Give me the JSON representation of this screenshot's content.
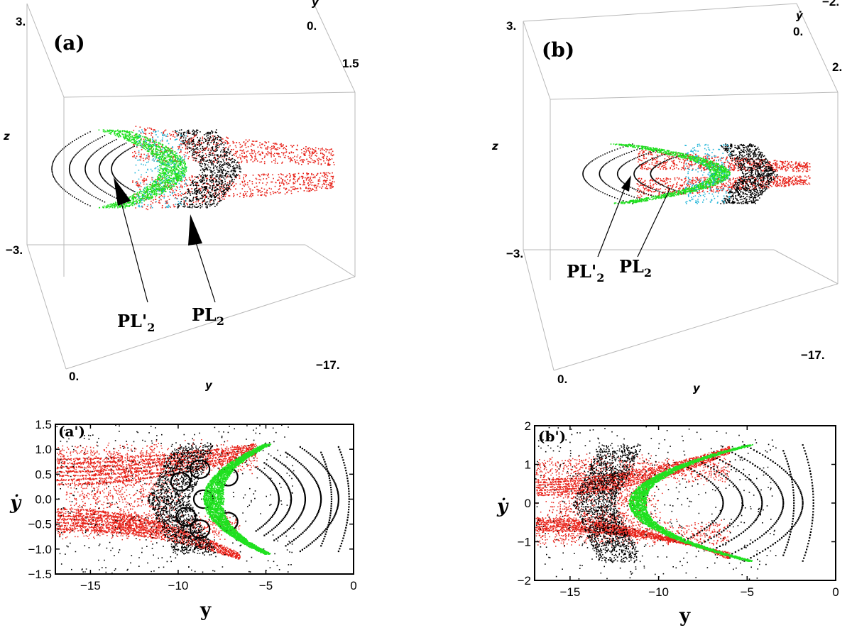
{
  "chart_data": [
    {
      "id": "a",
      "type": "scatter",
      "kind": "3d",
      "panel_label": "(a)",
      "axes": {
        "y": {
          "label": "y",
          "ticks": [
            "0.",
            "−17."
          ]
        },
        "ydot": {
          "label": "ẏ",
          "ticks": [
            "0.",
            "1.5"
          ]
        },
        "z": {
          "label": "z",
          "ticks": [
            "3.",
            "−3."
          ]
        }
      },
      "annotations": [
        {
          "label_main": "PL'",
          "label_sub": "2"
        },
        {
          "label_main": "PL",
          "label_sub": "2"
        }
      ],
      "series_colors": {
        "black": "#000000",
        "red": "#e8231a",
        "green": "#1fe01f",
        "cyan": "#22b5d8"
      }
    },
    {
      "id": "b",
      "type": "scatter",
      "kind": "3d",
      "panel_label": "(b)",
      "axes": {
        "y": {
          "label": "y",
          "ticks": [
            "0.",
            "−17."
          ]
        },
        "ydot": {
          "label": "ẏ",
          "ticks": [
            "−2.",
            "0.",
            "2."
          ]
        },
        "z": {
          "label": "z",
          "ticks": [
            "3.",
            "−3."
          ]
        }
      },
      "annotations": [
        {
          "label_main": "PL'",
          "label_sub": "2"
        },
        {
          "label_main": "PL",
          "label_sub": "2"
        }
      ],
      "series_colors": {
        "black": "#000000",
        "red": "#e8231a",
        "green": "#1fe01f",
        "cyan": "#22b5d8"
      }
    },
    {
      "id": "a_prime",
      "type": "scatter",
      "panel_label": "(a')",
      "xlabel": "y",
      "ylabel": "ẏ",
      "xlim": [
        -17,
        0
      ],
      "ylim": [
        -1.5,
        1.5
      ],
      "xticks": [
        -15,
        -10,
        -5,
        0
      ],
      "yticks": [
        1.5,
        1.0,
        0.5,
        0.0,
        -0.5,
        -1.0,
        -1.5
      ],
      "xtick_labels": [
        "−15",
        "−10",
        "−5",
        "0"
      ],
      "ytick_labels": [
        "1.5",
        "1.0",
        "0.5",
        "0.0",
        "−0.5",
        "−1.0",
        "−1.5"
      ],
      "series_colors": {
        "black": "#000000",
        "red": "#e8231a",
        "green": "#1fe01f"
      },
      "structures": {
        "black_rings": {
          "center": [
            -0.5,
            0
          ],
          "k": 0.33,
          "y_tips": [
            -0.9,
            -1.9,
            -2.8,
            -3.6,
            -4.3
          ],
          "hw_frac": [
            0.95,
            0.85,
            0.75,
            0.66,
            0.58
          ]
        },
        "crescent_tip": [
          -5.0,
          1.1
        ],
        "green_crescent": {
          "vertex_y": -8.6,
          "tip": [
            -5.1,
            1.1
          ],
          "width": 1.2
        },
        "black_islands": [
          [
            -7.2,
            0.45
          ],
          [
            -7.2,
            -0.45
          ],
          [
            -8.8,
            0.6
          ],
          [
            -8.6,
            0.0
          ],
          [
            -8.8,
            -0.6
          ],
          [
            -9.9,
            0.35
          ],
          [
            -9.6,
            -0.35
          ]
        ],
        "red_bands_upper": {
          "from_y": -17,
          "to_y": -5.5,
          "y_start": [
            0.8,
            0.3
          ],
          "y_end": [
            1.1,
            0.9
          ]
        },
        "red_bands_lower": {
          "from_y": -17,
          "to_y": -6.5,
          "y_start": [
            -0.2,
            -0.6
          ],
          "y_end": [
            -1.1,
            -1.2
          ]
        }
      }
    },
    {
      "id": "b_prime",
      "type": "scatter",
      "panel_label": "(b')",
      "xlabel": "y",
      "ylabel": "ẏ",
      "xlim": [
        -17,
        0
      ],
      "ylim": [
        -2,
        2
      ],
      "xticks": [
        -15,
        -10,
        -5,
        0
      ],
      "yticks": [
        2,
        1,
        0,
        -1,
        -2
      ],
      "xtick_labels": [
        "−15",
        "−10",
        "−5",
        "0"
      ],
      "ytick_labels": [
        "2",
        "1",
        "0",
        "−1",
        "−2"
      ],
      "series_colors": {
        "black": "#000000",
        "red": "#e8231a",
        "green": "#1fe01f"
      },
      "structures": {
        "black_rings": {
          "center": [
            -2.7,
            0
          ],
          "k": 0.5,
          "y_tips": [
            -1.9,
            -3.0,
            -4.2,
            -5.3,
            -6.4
          ],
          "hw_frac": [
            1.0,
            0.9,
            0.8,
            0.72,
            0.64
          ]
        },
        "crescent_tip": [
          -5.0,
          1.5
        ],
        "green_crescent": {
          "vertex_y": -11.7,
          "tip": [
            -5.0,
            1.5
          ],
          "width": 1.0
        },
        "red_bands_upper": {
          "from_y": -17,
          "to_y": -6.0,
          "y_start": [
            0.6,
            0.2
          ],
          "y_end": [
            1.45,
            1.3
          ]
        },
        "red_bands_lower": {
          "from_y": -17,
          "to_y": -6.0,
          "y_start": [
            -0.4,
            -0.7
          ],
          "y_end": [
            -1.45,
            -1.3
          ]
        }
      }
    }
  ]
}
